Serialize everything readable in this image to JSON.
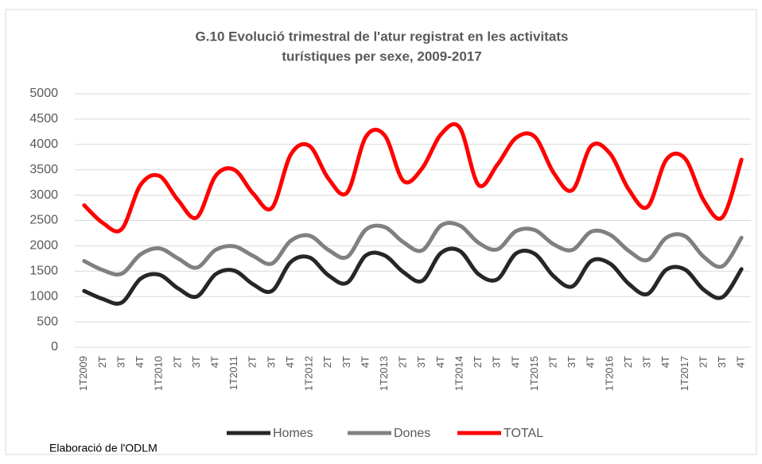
{
  "chart_data": {
    "type": "line",
    "title": "G.10 Evolució trimestral de l'atur registrat en les activitats",
    "subtitle": "turístiques per sexe, 2009-2017",
    "source": "Elaboració de l'ODLM",
    "categories": [
      "1T2009",
      "2T",
      "3T",
      "4T",
      "1T2010",
      "2T",
      "3T",
      "4T",
      "1T2011",
      "2T",
      "3T",
      "4T",
      "1T2012",
      "2T",
      "3T",
      "4T",
      "1T2013",
      "2T",
      "3T",
      "4T",
      "1T2014",
      "2T",
      "3T",
      "4T",
      "1T2015",
      "2T",
      "3T",
      "4T",
      "1T2016",
      "2T",
      "3T",
      "4T",
      "1T2017",
      "2T",
      "3T",
      "4T"
    ],
    "series": [
      {
        "name": "Homes",
        "color": "#262626",
        "values": [
          1110,
          950,
          880,
          1350,
          1430,
          1160,
          1000,
          1440,
          1510,
          1240,
          1110,
          1680,
          1770,
          1420,
          1270,
          1810,
          1810,
          1480,
          1310,
          1860,
          1900,
          1440,
          1340,
          1850,
          1840,
          1400,
          1200,
          1700,
          1650,
          1250,
          1050,
          1530,
          1530,
          1130,
          990,
          1540
        ]
      },
      {
        "name": "Dones",
        "color": "#808080",
        "values": [
          1700,
          1520,
          1450,
          1830,
          1950,
          1750,
          1570,
          1920,
          1990,
          1800,
          1650,
          2100,
          2200,
          1920,
          1780,
          2320,
          2370,
          2070,
          1910,
          2400,
          2400,
          2060,
          1930,
          2290,
          2310,
          2030,
          1920,
          2280,
          2220,
          1900,
          1720,
          2160,
          2190,
          1780,
          1600,
          2160
        ]
      },
      {
        "name": "TOTAL",
        "color": "#ff0000",
        "values": [
          2800,
          2450,
          2330,
          3200,
          3380,
          2900,
          2560,
          3380,
          3500,
          3030,
          2750,
          3800,
          3970,
          3330,
          3050,
          4150,
          4180,
          3280,
          3530,
          4200,
          4330,
          3200,
          3600,
          4130,
          4150,
          3440,
          3100,
          3970,
          3820,
          3110,
          2770,
          3700,
          3720,
          2890,
          2570,
          3700
        ]
      }
    ],
    "ylim": [
      0,
      5000
    ],
    "yticks": [
      0,
      500,
      1000,
      1500,
      2000,
      2500,
      3000,
      3500,
      4000,
      4500,
      5000
    ],
    "grid": true,
    "legend": "bottom"
  }
}
